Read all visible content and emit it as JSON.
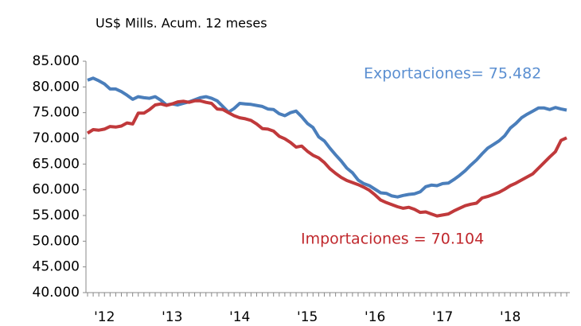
{
  "chart_data": {
    "type": "line",
    "subtitle": "US$ Mills. Acum. 12 meses",
    "categories": [
      null,
      null,
      null,
      "'12",
      null,
      null,
      null,
      null,
      null,
      null,
      null,
      null,
      null,
      null,
      null,
      "'13",
      null,
      null,
      null,
      null,
      null,
      null,
      null,
      null,
      null,
      null,
      null,
      "'14",
      null,
      null,
      null,
      null,
      null,
      null,
      null,
      null,
      null,
      null,
      null,
      "'15",
      null,
      null,
      null,
      null,
      null,
      null,
      null,
      null,
      null,
      null,
      null,
      "'16",
      null,
      null,
      null,
      null,
      null,
      null,
      null,
      null,
      null,
      null,
      null,
      "'17",
      null,
      null,
      null,
      null,
      null,
      null,
      null,
      null,
      null,
      null,
      null,
      "'18",
      null,
      null,
      null,
      null,
      null,
      null,
      null,
      null,
      null,
      null
    ],
    "series": [
      {
        "name": "Exportaciones",
        "color": "#4a7ebb",
        "values": [
          81300,
          81700,
          81200,
          80600,
          79600,
          79600,
          79100,
          78400,
          77600,
          78100,
          77900,
          77800,
          78100,
          77400,
          76500,
          76700,
          76500,
          76800,
          77100,
          77500,
          77900,
          78100,
          77800,
          77300,
          76200,
          75100,
          75800,
          76800,
          76700,
          76600,
          76400,
          76200,
          75700,
          75600,
          74800,
          74400,
          75000,
          75300,
          74200,
          72900,
          72100,
          70300,
          69500,
          68100,
          66800,
          65600,
          64200,
          63300,
          61900,
          61200,
          60800,
          60100,
          59400,
          59300,
          58800,
          58600,
          58900,
          59100,
          59200,
          59600,
          60600,
          60900,
          60800,
          61200,
          61300,
          62000,
          62800,
          63700,
          64800,
          65800,
          67000,
          68100,
          68800,
          69500,
          70500,
          72000,
          72900,
          74000,
          74700,
          75300,
          75900,
          75900,
          75600,
          76000,
          75700,
          75482
        ]
      },
      {
        "name": "Importaciones",
        "color": "#c0393b",
        "values": [
          71000,
          71700,
          71600,
          71800,
          72300,
          72200,
          72400,
          73000,
          72800,
          74900,
          74900,
          75600,
          76500,
          76700,
          76400,
          76700,
          77100,
          77200,
          77000,
          77300,
          77300,
          77000,
          76800,
          75700,
          75600,
          75000,
          74400,
          74000,
          73800,
          73500,
          72800,
          71900,
          71800,
          71400,
          70400,
          69900,
          69200,
          68300,
          68500,
          67500,
          66700,
          66200,
          65300,
          64100,
          63200,
          62400,
          61800,
          61400,
          61000,
          60500,
          59900,
          59000,
          58000,
          57500,
          57100,
          56700,
          56400,
          56600,
          56200,
          55600,
          55700,
          55300,
          54900,
          55100,
          55300,
          55900,
          56400,
          56900,
          57200,
          57400,
          58400,
          58700,
          59100,
          59500,
          60100,
          60800,
          61300,
          61900,
          62500,
          63100,
          64200,
          65300,
          66400,
          67400,
          69600,
          70104
        ]
      }
    ],
    "annotations": [
      "Exportaciones= 75.482",
      "Importaciones =  70.104"
    ],
    "ylim": [
      40000,
      85000
    ],
    "yticks": [
      {
        "value": 40000,
        "label": "40.000"
      },
      {
        "value": 45000,
        "label": "45.000"
      },
      {
        "value": 50000,
        "label": "50.000"
      },
      {
        "value": 55000,
        "label": "55.000"
      },
      {
        "value": 60000,
        "label": "60.000"
      },
      {
        "value": 65000,
        "label": "65.000"
      },
      {
        "value": 70000,
        "label": "70.000"
      },
      {
        "value": 75000,
        "label": "75.000"
      },
      {
        "value": 80000,
        "label": "80.000"
      },
      {
        "value": 85000,
        "label": "85.000"
      }
    ]
  }
}
